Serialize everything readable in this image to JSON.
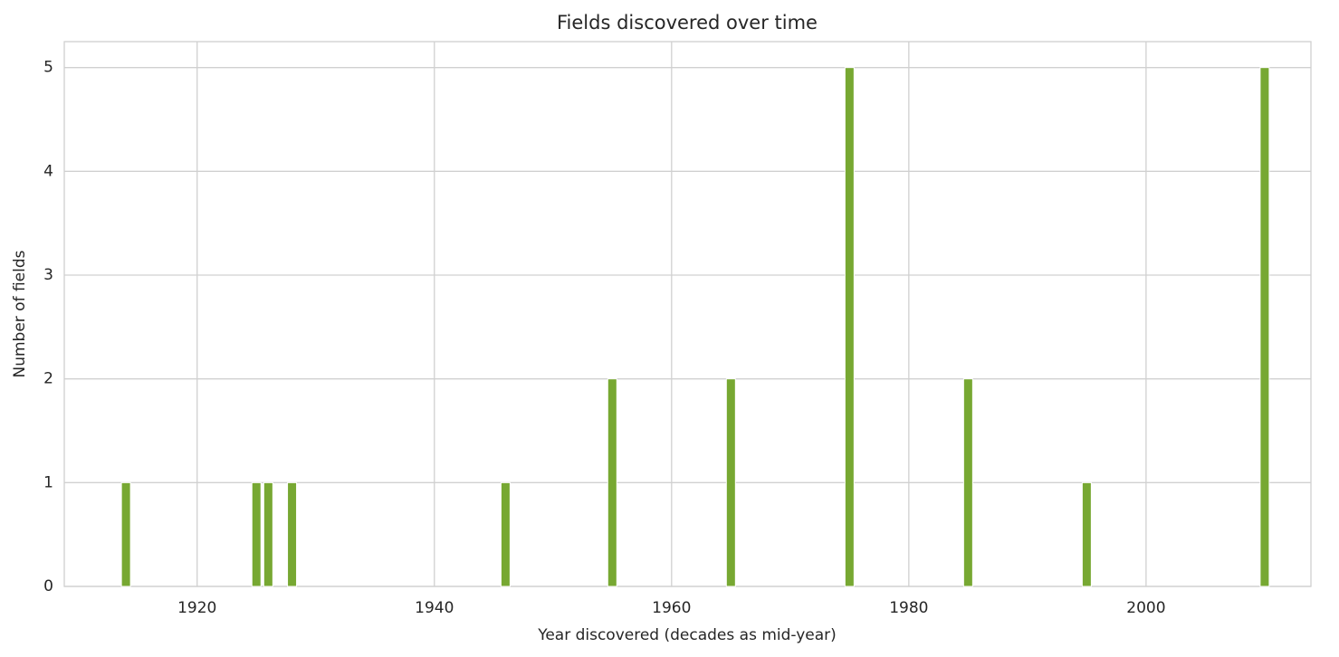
{
  "chart_data": {
    "type": "bar",
    "title": "Fields discovered over time",
    "x_label": "Year discovered (decades as mid-year)",
    "y_label": "Number of fields",
    "x": [
      1914,
      1925,
      1926,
      1928,
      1946,
      1955,
      1965,
      1975,
      1985,
      1995,
      2010
    ],
    "values": [
      1,
      1,
      1,
      1,
      1,
      2,
      2,
      5,
      2,
      1,
      5
    ],
    "color": "#77a832",
    "xlim": [
      1908.8,
      2013.9
    ],
    "xticks": [
      1920,
      1940,
      1960,
      1980,
      2000
    ],
    "ylim": [
      0,
      5.25
    ],
    "yticks": [
      0,
      1,
      2,
      3,
      4,
      5
    ],
    "grid": true
  }
}
